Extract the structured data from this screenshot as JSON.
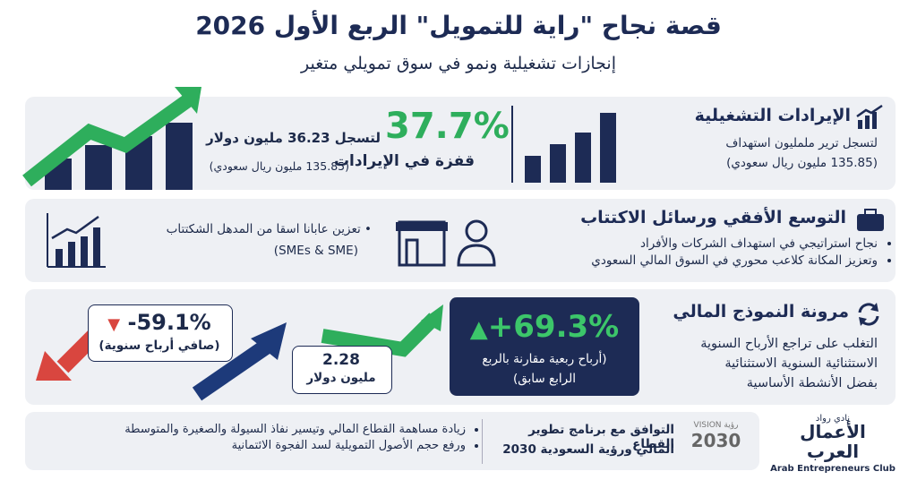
{
  "header": {
    "title": "قصة نجاح \"راية للتمويل\" الربع الأول 2026",
    "subtitle": "إنجازات تشغيلية ونمو في سوق تمويلي متغير"
  },
  "revenue": {
    "heading": "الإيرادات التشغيلية",
    "lines": [
      "لتسجل ترير ململيون استهداف",
      "(135.85 مليون ريال سعودي)"
    ],
    "highlight": {
      "value": "37.7%",
      "line1": "لتسجل 36.23 مليون دولار",
      "line2": "قفزة في الإيرادات",
      "line3": "(135.85 مليون ريال سعودي)"
    }
  },
  "expansion": {
    "heading": "التوسع الأفقي ورسائل الاكتتاب",
    "bullets": [
      "نجاح استراتيجي في استهداف الشركات والأفراد",
      "وتعزيز المكانة كلاعب محوري في السوق المالي السعودي"
    ],
    "note": [
      "تعزين عابانا اسقا من المدهل الشكتتاب",
      "(SMEs & SME)"
    ]
  },
  "resilience": {
    "heading": "مرونة النموذج المالي",
    "lines": [
      "التغلب على تراجع الأرباح السنوية",
      "الاستثنائية السنوية الاستثنائية",
      "بفضل الأنشطة الأساسية"
    ],
    "growth": {
      "value": "+69.3%",
      "label": [
        "(أرباح ربعية مقارنة بالربع",
        "الرابع سابق)"
      ]
    },
    "decline": {
      "value": "-59.1%",
      "label": "(صافي أرباح سنوية)"
    },
    "profit": {
      "value": "2.28",
      "unit": "مليون دولار"
    }
  },
  "footer": {
    "bullets": [
      "زيادة مساهمة القطاع المالي وتيسير نفاذ السيولة والصغيرة والمتوسطة",
      "ورفع حجم الأصول التمويلية لسد الفجوة الائتمانية"
    ],
    "alignment": [
      "التوافق مع برنامج تطوير القطاع",
      "المالي ورؤية السعودية 2030"
    ],
    "vision_logo": {
      "arabic": "رؤية",
      "latin": "VISION",
      "year": "2030"
    },
    "club_logo": {
      "top": "نادي رواد",
      "line1": "الأعمال",
      "line2": "العرب",
      "english": "Arab Entrepreneurs Club"
    }
  }
}
